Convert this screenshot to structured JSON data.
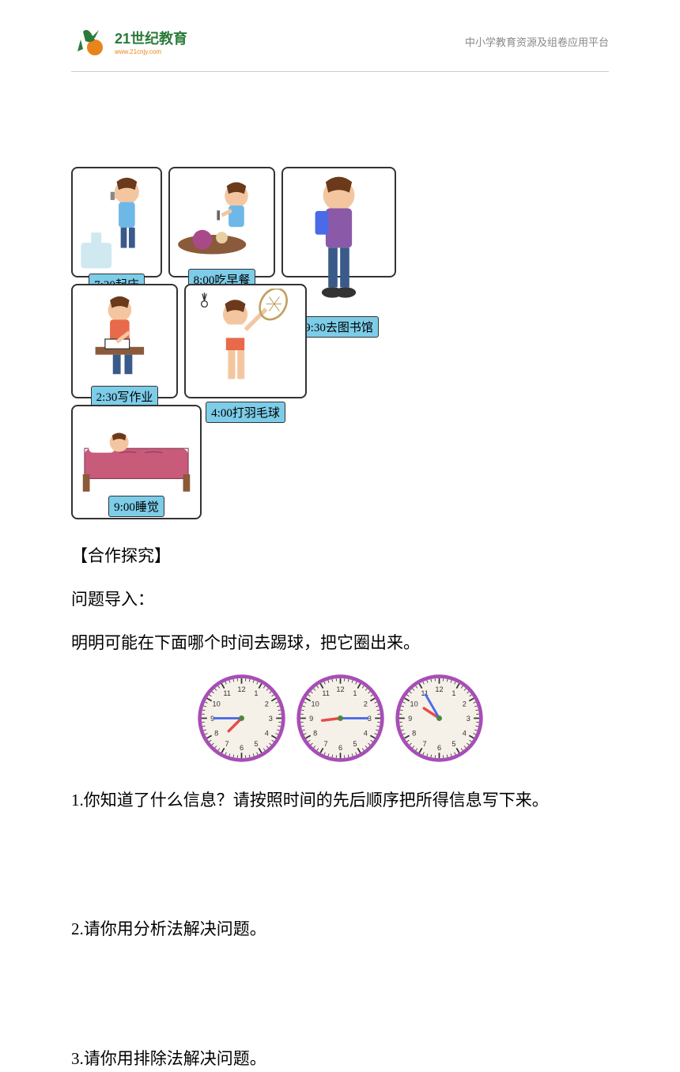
{
  "header": {
    "logo_main": "21世纪教育",
    "logo_url": "www.21cnjy.com",
    "right_text": "中小学教育资源及组卷应用平台"
  },
  "activities": [
    {
      "label": "7:30起床",
      "card_class": "card-1"
    },
    {
      "label": "8:00吃早餐",
      "card_class": "card-2"
    },
    {
      "label": "9:30去图书馆",
      "card_class": "card-3"
    },
    {
      "label": "2:30写作业",
      "card_class": "card-4"
    },
    {
      "label": "4:00打羽毛球",
      "card_class": "card-5"
    },
    {
      "label": "9:00睡觉",
      "card_class": "card-6"
    }
  ],
  "section": {
    "heading": "【合作探究】",
    "intro": "问题导入：",
    "question_prompt": "明明可能在下面哪个时间去踢球，把它圈出来。"
  },
  "clocks": [
    {
      "hour_angle": 225,
      "minute_angle": 270,
      "bezel": "#a84db8",
      "face": "#f5f0e8"
    },
    {
      "hour_angle": 263,
      "minute_angle": 90,
      "bezel": "#a84db8",
      "face": "#f5f0e8"
    },
    {
      "hour_angle": 303,
      "minute_angle": 330,
      "bezel": "#a84db8",
      "face": "#f5f0e8"
    }
  ],
  "questions": {
    "q1": "1.你知道了什么信息？请按照时间的先后顺序把所得信息写下来。",
    "q2": "2.请你用分析法解决问题。",
    "q3": "3.请你用排除法解决问题。"
  },
  "colors": {
    "boy_skin": "#f4c6a0",
    "boy_hair": "#6b3a1a",
    "boy_shirt1": "#6eb8e8",
    "boy_shirt2": "#8a5aa8",
    "boy_shorts": "#3a5a8a",
    "label_bg": "#7dcce8",
    "border": "#333333",
    "logo_green": "#2a7a3a",
    "logo_orange": "#e8841a",
    "clock_bezel": "#a84db8",
    "clock_face": "#f5f0e8",
    "clock_center": "#4a8a3a",
    "hour_hand": "#e84a4a",
    "minute_hand": "#4a6ae8"
  }
}
